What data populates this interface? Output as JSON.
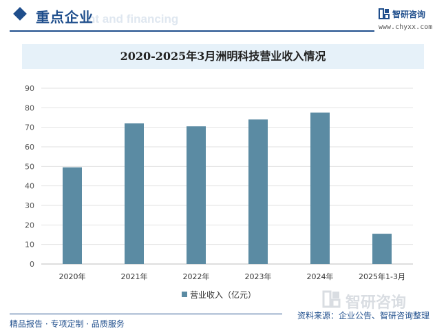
{
  "header": {
    "section_title": "重点企业",
    "ghost_text": "nt and financing",
    "brand_name": "智研咨询",
    "brand_url": "www.chyxx.com"
  },
  "colors": {
    "accent": "#1f4e8c",
    "bar": "#5b8ba3",
    "title_bg": "#e6f1f9"
  },
  "chart_data": {
    "type": "bar",
    "title": "2020-2025年3月洲明科技营业收入情况",
    "categories": [
      "2020年",
      "2021年",
      "2022年",
      "2023年",
      "2024年",
      "2025年1-3月"
    ],
    "series": [
      {
        "name": "营业收入（亿元）",
        "values": [
          49.5,
          72,
          70.5,
          74,
          77.5,
          15.5
        ]
      }
    ],
    "ylim": [
      0,
      90
    ],
    "yticks": [
      0,
      10,
      20,
      30,
      40,
      50,
      60,
      70,
      80,
      90
    ],
    "grid": true,
    "legend_position": "bottom"
  },
  "footer": {
    "tagline": "精品报告 · 专项定制 · 品质服务",
    "source": "资料来源：企业公告、智研咨询整理",
    "watermark": "智研咨询"
  }
}
